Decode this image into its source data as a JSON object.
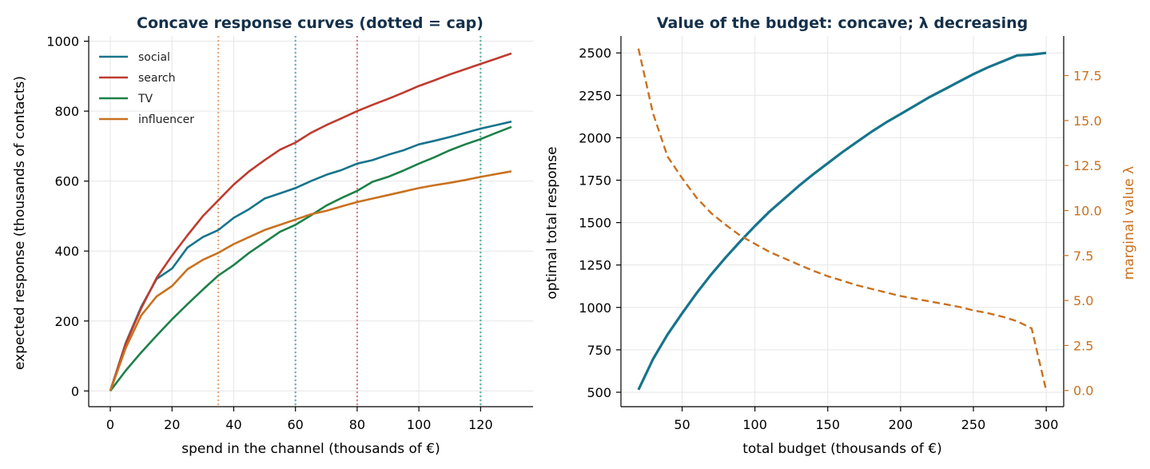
{
  "chart_data": [
    {
      "type": "line",
      "title": "Concave response curves (dotted = cap)",
      "xlabel": "spend in the channel (thousands of €)",
      "ylabel": "expected response (thousands of contacts)",
      "xlim": [
        -7,
        137
      ],
      "ylim": [
        -45,
        1015
      ],
      "xticks": [
        0,
        20,
        40,
        60,
        80,
        100,
        120
      ],
      "yticks": [
        0,
        200,
        400,
        600,
        800,
        1000
      ],
      "grid": true,
      "legend_position": "top-left",
      "x": [
        0,
        5,
        10,
        15,
        20,
        25,
        30,
        35,
        40,
        45,
        50,
        55,
        60,
        65,
        70,
        75,
        80,
        85,
        90,
        95,
        100,
        105,
        110,
        115,
        120,
        125,
        130
      ],
      "series": [
        {
          "name": "social",
          "color": "#17748c",
          "values": [
            0,
            137,
            240,
            320,
            350,
            410,
            440,
            460,
            495,
            520,
            550,
            565,
            580,
            600,
            618,
            632,
            650,
            660,
            675,
            688,
            705,
            715,
            726,
            738,
            750,
            760,
            770
          ]
        },
        {
          "name": "search",
          "color": "#bf3b2f",
          "values": [
            0,
            135,
            236,
            323,
            387,
            445,
            500,
            545,
            590,
            628,
            660,
            690,
            710,
            738,
            760,
            780,
            800,
            818,
            835,
            853,
            872,
            888,
            905,
            920,
            935,
            950,
            965
          ]
        },
        {
          "name": "TV",
          "color": "#1e8049",
          "values": [
            0,
            58,
            110,
            158,
            205,
            248,
            290,
            330,
            360,
            395,
            425,
            455,
            475,
            502,
            530,
            552,
            572,
            598,
            612,
            630,
            650,
            668,
            688,
            705,
            720,
            738,
            755
          ]
        },
        {
          "name": "influencer",
          "color": "#c9711f",
          "values": [
            0,
            123,
            216,
            270,
            300,
            348,
            375,
            395,
            420,
            440,
            460,
            475,
            490,
            505,
            515,
            528,
            540,
            550,
            560,
            570,
            580,
            588,
            595,
            603,
            612,
            620,
            628
          ]
        }
      ],
      "caps": [
        {
          "x": 35,
          "color": "#e8a77a"
        },
        {
          "x": 60,
          "color": "#6fa9c2"
        },
        {
          "x": 80,
          "color": "#e07e80"
        },
        {
          "x": 120,
          "color": "#5bb59c"
        }
      ]
    },
    {
      "type": "line",
      "title": "Value of the budget: concave; λ decreasing",
      "xlabel": "total budget (thousands of €)",
      "ylabel": "optimal total response",
      "ylabel_right": "marginal value λ",
      "xlim": [
        8,
        312
      ],
      "ylim": [
        415,
        2600
      ],
      "ylim_right": [
        -0.9,
        19.7
      ],
      "xticks": [
        50,
        100,
        150,
        200,
        250,
        300
      ],
      "yticks": [
        500,
        750,
        1000,
        1250,
        1500,
        1750,
        2000,
        2250,
        2500
      ],
      "yticks_right": [
        0.0,
        2.5,
        5.0,
        7.5,
        10.0,
        12.5,
        15.0,
        17.5
      ],
      "ytick_labels_right": [
        "0.0",
        "2.5",
        "5.0",
        "7.5",
        "10.0",
        "12.5",
        "15.0",
        "17.5"
      ],
      "grid": true,
      "series": [
        {
          "name": "optimal total response",
          "axis": "left",
          "color": "#17748c",
          "style": "solid",
          "x": [
            20,
            25,
            30,
            40,
            50,
            60,
            70,
            80,
            90,
            100,
            110,
            120,
            130,
            140,
            150,
            160,
            170,
            180,
            190,
            200,
            210,
            220,
            230,
            240,
            250,
            260,
            270,
            280,
            290,
            300
          ],
          "values": [
            515,
            605,
            695,
            840,
            965,
            1085,
            1195,
            1295,
            1390,
            1480,
            1565,
            1640,
            1715,
            1785,
            1850,
            1915,
            1975,
            2035,
            2090,
            2140,
            2190,
            2240,
            2285,
            2330,
            2375,
            2415,
            2450,
            2485,
            2490,
            2500
          ]
        },
        {
          "name": "marginal value λ",
          "axis": "right",
          "color": "#c9711f",
          "style": "dashed",
          "x": [
            20,
            25,
            30,
            40,
            50,
            60,
            70,
            80,
            90,
            100,
            110,
            120,
            130,
            140,
            150,
            160,
            170,
            180,
            190,
            200,
            210,
            220,
            230,
            240,
            250,
            260,
            270,
            280,
            290,
            300
          ],
          "values": [
            19.0,
            17.2,
            15.4,
            13.0,
            11.8,
            10.7,
            9.85,
            9.2,
            8.6,
            8.15,
            7.7,
            7.35,
            7.0,
            6.65,
            6.35,
            6.1,
            5.85,
            5.65,
            5.45,
            5.25,
            5.1,
            4.95,
            4.8,
            4.65,
            4.45,
            4.3,
            4.1,
            3.85,
            3.45,
            0.0
          ]
        }
      ]
    }
  ]
}
